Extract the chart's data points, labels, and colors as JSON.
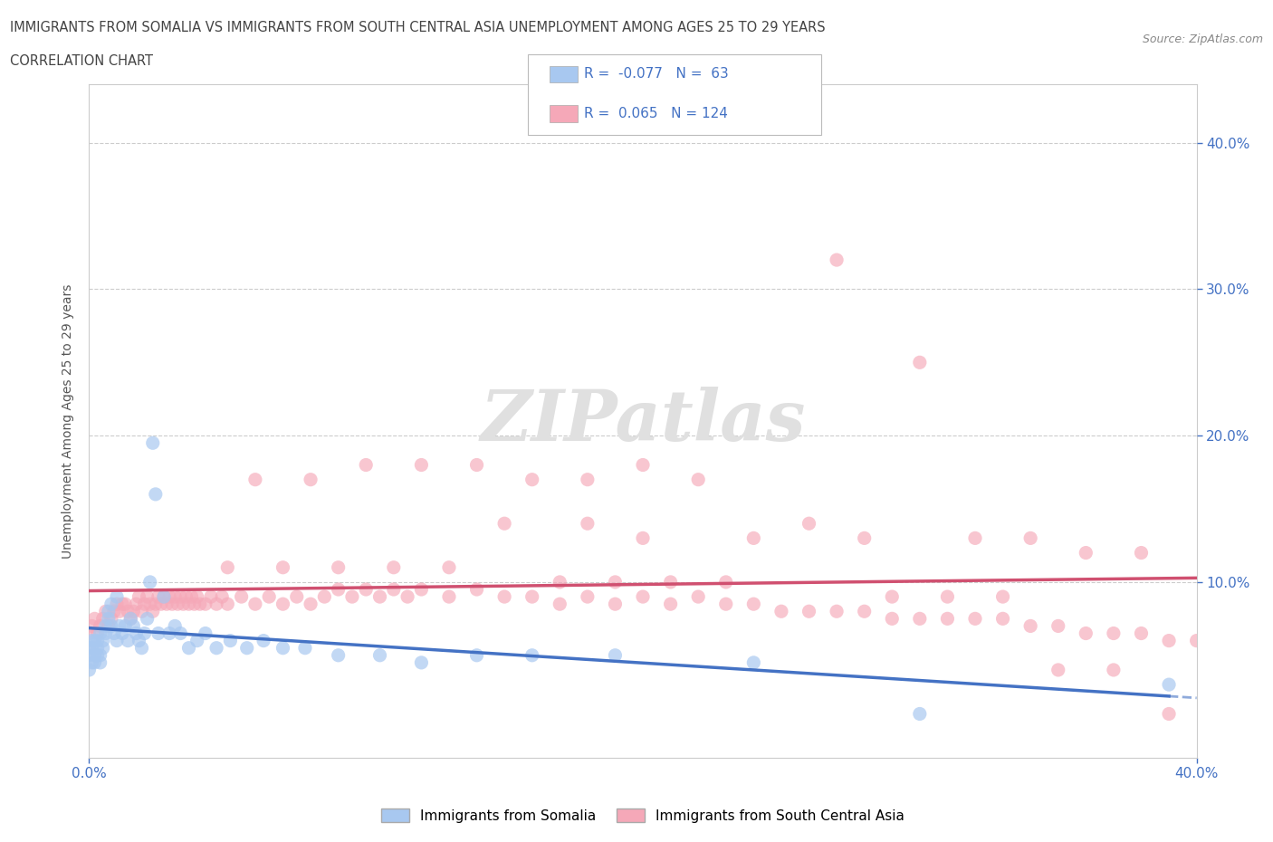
{
  "title_line1": "IMMIGRANTS FROM SOMALIA VS IMMIGRANTS FROM SOUTH CENTRAL ASIA UNEMPLOYMENT AMONG AGES 25 TO 29 YEARS",
  "title_line2": "CORRELATION CHART",
  "source": "Source: ZipAtlas.com",
  "ylabel": "Unemployment Among Ages 25 to 29 years",
  "xlim": [
    0.0,
    0.4
  ],
  "ylim": [
    -0.02,
    0.44
  ],
  "xticklabels_show": [
    "0.0%",
    "40.0%"
  ],
  "xticklabels_pos": [
    0.0,
    0.4
  ],
  "right_yticklabels": [
    "10.0%",
    "20.0%",
    "30.0%",
    "40.0%"
  ],
  "right_yticks": [
    0.1,
    0.2,
    0.3,
    0.4
  ],
  "somalia_color": "#a8c8f0",
  "sca_color": "#f5a8b8",
  "somalia_R": -0.077,
  "somalia_N": 63,
  "sca_R": 0.065,
  "sca_N": 124,
  "somalia_line_color": "#4472c4",
  "sca_line_color": "#d05070",
  "watermark": "ZIPatlas",
  "legend_label_somalia": "Immigrants from Somalia",
  "legend_label_sca": "Immigrants from South Central Asia",
  "somalia_x": [
    0.0,
    0.0,
    0.0,
    0.001,
    0.001,
    0.001,
    0.002,
    0.002,
    0.002,
    0.003,
    0.003,
    0.003,
    0.004,
    0.004,
    0.004,
    0.005,
    0.005,
    0.006,
    0.006,
    0.007,
    0.007,
    0.008,
    0.008,
    0.009,
    0.01,
    0.01,
    0.011,
    0.012,
    0.013,
    0.014,
    0.015,
    0.016,
    0.017,
    0.018,
    0.019,
    0.02,
    0.021,
    0.022,
    0.023,
    0.024,
    0.025,
    0.027,
    0.029,
    0.031,
    0.033,
    0.036,
    0.039,
    0.042,
    0.046,
    0.051,
    0.057,
    0.063,
    0.07,
    0.078,
    0.09,
    0.105,
    0.12,
    0.14,
    0.16,
    0.19,
    0.24,
    0.3,
    0.39
  ],
  "somalia_y": [
    0.05,
    0.04,
    0.055,
    0.06,
    0.045,
    0.055,
    0.05,
    0.06,
    0.045,
    0.055,
    0.05,
    0.06,
    0.045,
    0.065,
    0.05,
    0.06,
    0.055,
    0.07,
    0.065,
    0.075,
    0.08,
    0.085,
    0.07,
    0.065,
    0.09,
    0.06,
    0.07,
    0.065,
    0.07,
    0.06,
    0.075,
    0.07,
    0.065,
    0.06,
    0.055,
    0.065,
    0.075,
    0.1,
    0.195,
    0.16,
    0.065,
    0.09,
    0.065,
    0.07,
    0.065,
    0.055,
    0.06,
    0.065,
    0.055,
    0.06,
    0.055,
    0.06,
    0.055,
    0.055,
    0.05,
    0.05,
    0.045,
    0.05,
    0.05,
    0.05,
    0.045,
    0.01,
    0.03
  ],
  "sca_x": [
    0.0,
    0.001,
    0.002,
    0.003,
    0.004,
    0.005,
    0.006,
    0.007,
    0.008,
    0.009,
    0.01,
    0.011,
    0.012,
    0.013,
    0.014,
    0.015,
    0.016,
    0.017,
    0.018,
    0.019,
    0.02,
    0.021,
    0.022,
    0.023,
    0.024,
    0.025,
    0.026,
    0.027,
    0.028,
    0.029,
    0.03,
    0.031,
    0.032,
    0.033,
    0.034,
    0.035,
    0.036,
    0.037,
    0.038,
    0.039,
    0.04,
    0.042,
    0.044,
    0.046,
    0.048,
    0.05,
    0.055,
    0.06,
    0.065,
    0.07,
    0.075,
    0.08,
    0.085,
    0.09,
    0.095,
    0.1,
    0.105,
    0.11,
    0.115,
    0.12,
    0.13,
    0.14,
    0.15,
    0.16,
    0.17,
    0.18,
    0.19,
    0.2,
    0.21,
    0.22,
    0.23,
    0.24,
    0.25,
    0.26,
    0.27,
    0.28,
    0.29,
    0.3,
    0.31,
    0.32,
    0.33,
    0.34,
    0.35,
    0.36,
    0.37,
    0.38,
    0.39,
    0.4,
    0.27,
    0.3,
    0.06,
    0.08,
    0.1,
    0.12,
    0.14,
    0.16,
    0.18,
    0.2,
    0.22,
    0.15,
    0.18,
    0.2,
    0.24,
    0.26,
    0.28,
    0.32,
    0.34,
    0.36,
    0.38,
    0.05,
    0.07,
    0.09,
    0.11,
    0.13,
    0.17,
    0.19,
    0.21,
    0.23,
    0.29,
    0.31,
    0.33,
    0.35,
    0.37,
    0.39
  ],
  "sca_y": [
    0.065,
    0.07,
    0.075,
    0.065,
    0.07,
    0.075,
    0.08,
    0.07,
    0.075,
    0.08,
    0.085,
    0.08,
    0.085,
    0.085,
    0.08,
    0.075,
    0.08,
    0.085,
    0.09,
    0.08,
    0.085,
    0.09,
    0.085,
    0.08,
    0.085,
    0.09,
    0.085,
    0.09,
    0.085,
    0.09,
    0.085,
    0.09,
    0.085,
    0.09,
    0.085,
    0.09,
    0.085,
    0.09,
    0.085,
    0.09,
    0.085,
    0.085,
    0.09,
    0.085,
    0.09,
    0.085,
    0.09,
    0.085,
    0.09,
    0.085,
    0.09,
    0.085,
    0.09,
    0.095,
    0.09,
    0.095,
    0.09,
    0.095,
    0.09,
    0.095,
    0.09,
    0.095,
    0.09,
    0.09,
    0.085,
    0.09,
    0.085,
    0.09,
    0.085,
    0.09,
    0.085,
    0.085,
    0.08,
    0.08,
    0.08,
    0.08,
    0.075,
    0.075,
    0.075,
    0.075,
    0.075,
    0.07,
    0.07,
    0.065,
    0.065,
    0.065,
    0.06,
    0.06,
    0.32,
    0.25,
    0.17,
    0.17,
    0.18,
    0.18,
    0.18,
    0.17,
    0.17,
    0.18,
    0.17,
    0.14,
    0.14,
    0.13,
    0.13,
    0.14,
    0.13,
    0.13,
    0.13,
    0.12,
    0.12,
    0.11,
    0.11,
    0.11,
    0.11,
    0.11,
    0.1,
    0.1,
    0.1,
    0.1,
    0.09,
    0.09,
    0.09,
    0.04,
    0.04,
    0.01
  ]
}
